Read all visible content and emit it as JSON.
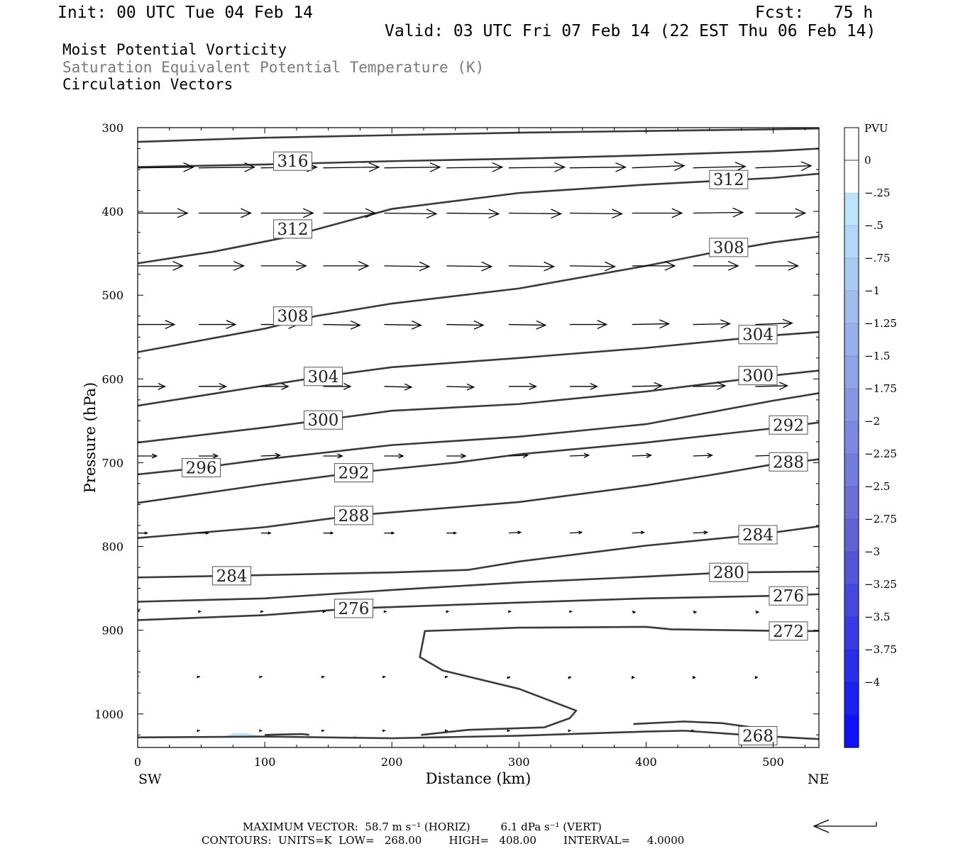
{
  "header": {
    "init": "Init: 00 UTC Tue 04 Feb 14",
    "fcst": "Fcst:   75 h",
    "valid": "Valid: 03 UTC Fri 07 Feb 14 (22 EST Thu 06 Feb 14)",
    "field1": "Moist Potential Vorticity",
    "field2": "Saturation Equivalent Potential Temperature (K)",
    "field3": "Circulation Vectors"
  },
  "colors": {
    "contour": "#3a3a3a",
    "label_text": "#222222",
    "mpv_light": "#bfe3f7"
  },
  "footer": {
    "max_vector": "MAXIMUM VECTOR:  58.7 m s⁻¹ (HORIZ)         6.1 dPa s⁻¹ (VERT)",
    "contours": "CONTOURS:  UNITS=K  LOW=   268.00        HIGH=   408.00        INTERVAL=     4.0000"
  },
  "chart_data": {
    "type": "cross-section",
    "xlabel": "Distance (km)",
    "ylabel": "Pressure (hPa)",
    "xlim": [
      0,
      536
    ],
    "ylim": [
      1040,
      300
    ],
    "x_ticks": [
      0,
      100,
      200,
      300,
      400,
      500
    ],
    "y_ticks": [
      300,
      400,
      500,
      600,
      700,
      800,
      900,
      1000
    ],
    "x_end_labels": {
      "left": "SW",
      "right": "NE"
    },
    "colorbar": {
      "unit": "PVU",
      "labels": [
        "0",
        "-.25",
        "-.5",
        "-.75",
        "-1",
        "-1.25",
        "-1.5",
        "-1.75",
        "-2",
        "-2.25",
        "-2.5",
        "-2.75",
        "-3",
        "-3.25",
        "-3.5",
        "-3.75",
        "-4"
      ],
      "levels": [
        0.25,
        0,
        -0.25,
        -0.5,
        -0.75,
        -1,
        -1.25,
        -1.5,
        -1.75,
        -2,
        -2.25,
        -2.5,
        -2.75,
        -3,
        -3.25,
        -3.5,
        -3.75,
        -4,
        -4.25
      ],
      "colors": [
        "#ffffff",
        "#ffffff",
        "#bce4fa",
        "#b3d7f6",
        "#aacaf2",
        "#a1bdee",
        "#98b0ea",
        "#8fa3e6",
        "#8696e2",
        "#7d89de",
        "#747cda",
        "#6b6fd6",
        "#6262d2",
        "#5455d6",
        "#4648dc",
        "#383be2",
        "#2a2ee8",
        "#1c21ee",
        "#0e12f6"
      ]
    },
    "contours": [
      {
        "pts": [
          [
            0,
            317
          ],
          [
            100,
            312
          ],
          [
            200,
            309
          ],
          [
            300,
            306
          ],
          [
            400,
            304
          ],
          [
            500,
            302
          ],
          [
            536,
            301
          ]
        ]
      },
      {
        "pts": [
          [
            0,
            347
          ],
          [
            100,
            344
          ],
          [
            200,
            340
          ],
          [
            300,
            337
          ],
          [
            400,
            333
          ],
          [
            500,
            328
          ],
          [
            536,
            325
          ]
        ],
        "label": "316",
        "lx": 122,
        "ly": 340
      },
      {
        "pts": [
          [
            0,
            462
          ],
          [
            60,
            448
          ],
          [
            120,
            430
          ],
          [
            200,
            397
          ],
          [
            300,
            378
          ],
          [
            400,
            368
          ],
          [
            500,
            360
          ],
          [
            536,
            355
          ]
        ],
        "labels": [
          {
            "text": "312",
            "lx": 122,
            "ly": 421
          },
          {
            "text": "312",
            "lx": 465,
            "ly": 362
          }
        ]
      },
      {
        "pts": [
          [
            0,
            568
          ],
          [
            100,
            540
          ],
          [
            140,
            525
          ],
          [
            200,
            510
          ],
          [
            300,
            492
          ],
          [
            400,
            465
          ],
          [
            450,
            450
          ],
          [
            500,
            437
          ],
          [
            536,
            430
          ]
        ],
        "labels": [
          {
            "text": "308",
            "lx": 122,
            "ly": 525
          },
          {
            "text": "308",
            "lx": 465,
            "ly": 443
          }
        ]
      },
      {
        "pts": [
          [
            0,
            632
          ],
          [
            100,
            608
          ],
          [
            146,
            597
          ],
          [
            200,
            586
          ],
          [
            300,
            575
          ],
          [
            400,
            563
          ],
          [
            500,
            548
          ],
          [
            536,
            544
          ]
        ],
        "labels": [
          {
            "text": "304",
            "lx": 146,
            "ly": 597
          },
          {
            "text": "304",
            "lx": 488,
            "ly": 547
          }
        ]
      },
      {
        "pts": [
          [
            0,
            676
          ],
          [
            100,
            658
          ],
          [
            146,
            649
          ],
          [
            200,
            638
          ],
          [
            300,
            630
          ],
          [
            400,
            615
          ],
          [
            500,
            596
          ],
          [
            536,
            590
          ]
        ],
        "labels": [
          {
            "text": "300",
            "lx": 146,
            "ly": 649
          },
          {
            "text": "300",
            "lx": 488,
            "ly": 596
          }
        ]
      },
      {
        "pts": [
          [
            0,
            714
          ],
          [
            50,
            706
          ],
          [
            100,
            696
          ],
          [
            200,
            679
          ],
          [
            300,
            669
          ],
          [
            400,
            654
          ],
          [
            500,
            626
          ],
          [
            536,
            617
          ]
        ],
        "labels": [
          {
            "text": "296",
            "lx": 50,
            "ly": 706
          }
        ]
      },
      {
        "pts": [
          [
            0,
            748
          ],
          [
            100,
            726
          ],
          [
            170,
            712
          ],
          [
            250,
            700
          ],
          [
            300,
            690
          ],
          [
            400,
            676
          ],
          [
            500,
            659
          ],
          [
            536,
            652
          ]
        ],
        "labels": [
          {
            "text": "292",
            "lx": 170,
            "ly": 712
          },
          {
            "text": "292",
            "lx": 512,
            "ly": 655
          }
        ]
      },
      {
        "pts": [
          [
            0,
            790
          ],
          [
            100,
            777
          ],
          [
            170,
            763
          ],
          [
            300,
            747
          ],
          [
            400,
            727
          ],
          [
            450,
            715
          ],
          [
            500,
            702
          ],
          [
            536,
            696
          ]
        ],
        "labels": [
          {
            "text": "288",
            "lx": 170,
            "ly": 763
          },
          {
            "text": "288",
            "lx": 512,
            "ly": 699
          }
        ]
      },
      {
        "pts": [
          [
            0,
            837
          ],
          [
            74,
            835
          ],
          [
            200,
            831
          ],
          [
            260,
            828
          ],
          [
            300,
            818
          ],
          [
            400,
            799
          ],
          [
            488,
            786
          ],
          [
            536,
            776
          ]
        ],
        "labels": [
          {
            "text": "284",
            "lx": 74,
            "ly": 835
          },
          {
            "text": "284",
            "lx": 488,
            "ly": 786
          }
        ]
      },
      {
        "pts": [
          [
            0,
            866
          ],
          [
            100,
            862
          ],
          [
            200,
            852
          ],
          [
            300,
            843
          ],
          [
            400,
            836
          ],
          [
            465,
            831
          ],
          [
            536,
            830
          ]
        ],
        "labels": [
          {
            "text": "280",
            "lx": 465,
            "ly": 831
          }
        ]
      },
      {
        "pts": [
          [
            0,
            888
          ],
          [
            100,
            882
          ],
          [
            170,
            874
          ],
          [
            300,
            867
          ],
          [
            400,
            862
          ],
          [
            500,
            859
          ],
          [
            536,
            857
          ]
        ],
        "labels": [
          {
            "text": "276",
            "lx": 170,
            "ly": 874
          },
          {
            "text": "276",
            "lx": 512,
            "ly": 859
          }
        ]
      },
      {
        "pts": [
          [
            223,
            1025
          ],
          [
            260,
            1019
          ],
          [
            320,
            1016
          ],
          [
            340,
            1005
          ],
          [
            345,
            996
          ],
          [
            300,
            970
          ],
          [
            240,
            948
          ],
          [
            222,
            932
          ],
          [
            226,
            901
          ],
          [
            300,
            897
          ],
          [
            400,
            896
          ],
          [
            420,
            899
          ],
          [
            512,
            901
          ],
          [
            536,
            901
          ]
        ],
        "labels": [
          {
            "text": "272",
            "lx": 512,
            "ly": 901
          }
        ]
      },
      {
        "pts": [
          [
            0,
            1028
          ],
          [
            100,
            1027
          ],
          [
            200,
            1029
          ],
          [
            300,
            1026
          ],
          [
            400,
            1021
          ],
          [
            430,
            1020
          ],
          [
            488,
            1026
          ],
          [
            536,
            1030
          ]
        ],
        "labels": [
          {
            "text": "268",
            "lx": 488,
            "ly": 1026
          }
        ]
      },
      {
        "pts": [
          [
            100,
            1025
          ],
          [
            130,
            1024
          ],
          [
            135,
            1025
          ]
        ]
      },
      {
        "pts": [
          [
            390,
            1012
          ],
          [
            430,
            1009
          ],
          [
            460,
            1011
          ],
          [
            488,
            1017
          ]
        ]
      }
    ],
    "mpv_shading": [
      {
        "level": "-.25",
        "pts": [
          [
            67,
            1028
          ],
          [
            75,
            1023
          ],
          [
            85,
            1023
          ],
          [
            97,
            1026
          ],
          [
            100,
            1028
          ]
        ]
      },
      {
        "level": "-.25",
        "pts": [
          [
            168,
            1029
          ],
          [
            171,
            1025
          ],
          [
            174,
            1029
          ]
        ]
      }
    ],
    "vectors": [
      {
        "p": 348,
        "x": [
          0,
          48,
          97,
          146,
          194,
          243,
          292,
          340,
          389,
          437,
          486
        ],
        "u": [
          47,
          47,
          47,
          47,
          47,
          47,
          47,
          47,
          44,
          44,
          47
        ],
        "w": [
          -1,
          -1,
          -1,
          -1,
          -1,
          -1,
          -1,
          -1,
          -3,
          -2,
          -3
        ]
      },
      {
        "p": 402,
        "x": [
          0,
          48,
          97,
          146,
          194,
          243,
          292,
          340,
          389,
          437,
          486
        ],
        "u": [
          42,
          44,
          44,
          44,
          44,
          44,
          44,
          44,
          42,
          42,
          42
        ],
        "w": [
          0,
          0,
          0,
          0,
          1,
          1,
          1,
          1,
          0,
          -1,
          0
        ]
      },
      {
        "p": 465,
        "x": [
          0,
          48,
          97,
          146,
          194,
          243,
          292,
          340,
          389,
          437,
          486
        ],
        "u": [
          38,
          38,
          38,
          38,
          38,
          38,
          38,
          38,
          36,
          38,
          36
        ],
        "w": [
          0,
          0,
          0,
          0,
          1,
          1,
          1,
          1,
          0,
          0,
          0
        ]
      },
      {
        "p": 535,
        "x": [
          0,
          48,
          97,
          146,
          194,
          243,
          292,
          340,
          389,
          437,
          486
        ],
        "u": [
          31,
          31,
          31,
          31,
          31,
          31,
          31,
          31,
          31,
          31,
          31
        ],
        "w": [
          0,
          0,
          0,
          1,
          1,
          1,
          1,
          0,
          -1,
          -1,
          -2
        ]
      },
      {
        "p": 609,
        "x": [
          0,
          48,
          97,
          146,
          194,
          243,
          292,
          340,
          389,
          437,
          486
        ],
        "u": [
          23,
          23,
          23,
          23,
          23,
          23,
          23,
          23,
          25,
          27,
          27
        ],
        "w": [
          0,
          0,
          0,
          0,
          1,
          1,
          0,
          0,
          -1,
          -1,
          -1
        ]
      },
      {
        "p": 692,
        "x": [
          0,
          48,
          97,
          146,
          194,
          243,
          292,
          340,
          389,
          437,
          486
        ],
        "u": [
          16,
          16,
          16,
          16,
          16,
          16,
          16,
          16,
          16,
          16,
          16
        ],
        "w": [
          0,
          0,
          -1,
          0,
          0,
          0,
          -1,
          -1,
          -1,
          -1,
          -1
        ]
      },
      {
        "p": 784,
        "x": [
          0,
          48,
          97,
          146,
          194,
          243,
          292,
          340,
          389,
          437,
          486
        ],
        "u": [
          8,
          8,
          8,
          8,
          8,
          8,
          10,
          10,
          10,
          12,
          12
        ],
        "w": [
          0,
          0,
          0,
          0,
          0,
          0,
          -1,
          -1,
          -1,
          -1,
          -1
        ]
      },
      {
        "p": 877,
        "x": [
          0,
          48,
          97,
          146,
          194,
          243,
          292,
          340,
          389,
          437,
          486
        ],
        "u": [
          2,
          2,
          2,
          2,
          2,
          2,
          2,
          2,
          3,
          3,
          3
        ],
        "w": [
          0,
          1,
          1,
          1,
          1,
          1,
          1,
          1,
          2,
          2,
          2
        ]
      },
      {
        "p": 955,
        "x": [
          0,
          48,
          97,
          146,
          194,
          243,
          292,
          340,
          389,
          437,
          486
        ],
        "u": [
          1,
          1,
          1,
          1,
          1,
          1,
          1,
          1,
          2,
          2,
          2
        ],
        "w": [
          0,
          1,
          1,
          1,
          1,
          1,
          2,
          2,
          2,
          2,
          2
        ]
      },
      {
        "p": 1020,
        "x": [
          48,
          97,
          146,
          194,
          243,
          292,
          340,
          437
        ],
        "u": [
          1,
          1,
          1,
          1,
          1,
          1,
          1,
          1
        ],
        "w": [
          0,
          0,
          0,
          0,
          0,
          0,
          0,
          0
        ]
      }
    ]
  }
}
